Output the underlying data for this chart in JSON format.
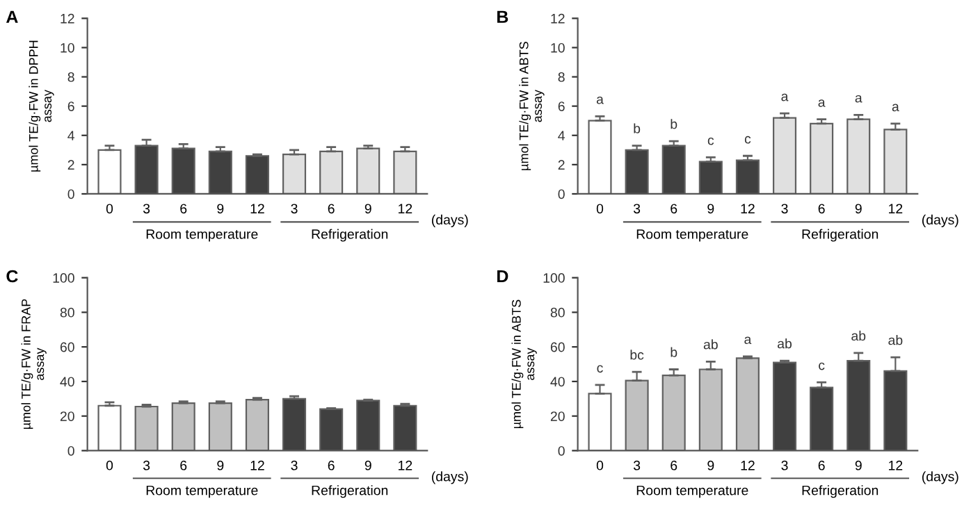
{
  "chart_data": [
    {
      "type": "bar",
      "title": "A",
      "ylabel": "µmol TE/g·FW in DPPH\nassay",
      "xlabel": "(days)",
      "categories": [
        "0",
        "3",
        "6",
        "9",
        "12",
        "3",
        "6",
        "9",
        "12"
      ],
      "values": [
        3.0,
        3.3,
        3.1,
        2.9,
        2.6,
        2.7,
        2.9,
        3.1,
        2.9
      ],
      "errors": [
        [
          3.0,
          3.3
        ],
        [
          3.3,
          3.7
        ],
        [
          3.1,
          3.4
        ],
        [
          2.9,
          3.2
        ],
        [
          2.6,
          2.7
        ],
        [
          2.7,
          3.0
        ],
        [
          2.9,
          3.2
        ],
        [
          3.1,
          3.3
        ],
        [
          2.9,
          3.2
        ]
      ],
      "colors": [
        "#ffffff",
        "#404040",
        "#404040",
        "#404040",
        "#404040",
        "#e0e0e0",
        "#e0e0e0",
        "#e0e0e0",
        "#e0e0e0"
      ],
      "ylim": [
        0,
        12
      ],
      "yticks": [
        0,
        2,
        4,
        6,
        8,
        10,
        12
      ],
      "grid": false,
      "annotations": [
        "Room temperature",
        "Refrigeration"
      ]
    },
    {
      "type": "bar",
      "title": "B",
      "ylabel": "µmol TE/g·FW in ABTS\nassay",
      "xlabel": "(days)",
      "categories": [
        "0",
        "3",
        "6",
        "9",
        "12",
        "3",
        "6",
        "9",
        "12"
      ],
      "values": [
        5.0,
        3.0,
        3.3,
        2.2,
        2.3,
        5.2,
        4.8,
        5.1,
        4.4
      ],
      "errors": [
        [
          5.0,
          5.3
        ],
        [
          3.0,
          3.3
        ],
        [
          3.3,
          3.6
        ],
        [
          2.2,
          2.5
        ],
        [
          2.3,
          2.6
        ],
        [
          5.2,
          5.5
        ],
        [
          4.8,
          5.1
        ],
        [
          5.1,
          5.4
        ],
        [
          4.4,
          4.8
        ]
      ],
      "value_labels": [
        "a",
        "b",
        "b",
        "c",
        "c",
        "a",
        "a",
        "a",
        "a"
      ],
      "colors": [
        "#ffffff",
        "#404040",
        "#404040",
        "#404040",
        "#404040",
        "#e0e0e0",
        "#e0e0e0",
        "#e0e0e0",
        "#e0e0e0"
      ],
      "ylim": [
        0,
        12
      ],
      "yticks": [
        0,
        2,
        4,
        6,
        8,
        10,
        12
      ],
      "grid": false,
      "annotations": [
        "Room temperature",
        "Refrigeration"
      ]
    },
    {
      "type": "bar",
      "title": "C",
      "ylabel": "µmol TE/g·FW in FRAP\nassay",
      "xlabel": "(days)",
      "categories": [
        "0",
        "3",
        "6",
        "9",
        "12",
        "3",
        "6",
        "9",
        "12"
      ],
      "values": [
        26,
        25.5,
        27.5,
        27.5,
        29.5,
        30,
        24,
        29,
        26
      ],
      "errors": [
        [
          26,
          28
        ],
        [
          25.5,
          26.5
        ],
        [
          27.5,
          28.5
        ],
        [
          27.5,
          28.5
        ],
        [
          29.5,
          30.5
        ],
        [
          30,
          31.5
        ],
        [
          24,
          24.5
        ],
        [
          29,
          29.5
        ],
        [
          26,
          27
        ]
      ],
      "colors": [
        "#ffffff",
        "#c0c0c0",
        "#c0c0c0",
        "#c0c0c0",
        "#c0c0c0",
        "#404040",
        "#404040",
        "#404040",
        "#404040"
      ],
      "ylim": [
        0,
        100
      ],
      "yticks": [
        0,
        20,
        40,
        60,
        80,
        100
      ],
      "grid": false,
      "annotations": [
        "Room temperature",
        "Refrigeration"
      ]
    },
    {
      "type": "bar",
      "title": "D",
      "ylabel": "µmol TE/g·FW in ABTS\nassay",
      "xlabel": "(days)",
      "categories": [
        "0",
        "3",
        "6",
        "9",
        "12",
        "3",
        "6",
        "9",
        "12"
      ],
      "values": [
        33,
        40.5,
        43.5,
        47,
        53.5,
        51,
        36.5,
        52,
        46
      ],
      "errors": [
        [
          33,
          38
        ],
        [
          40.5,
          45.5
        ],
        [
          43.5,
          47
        ],
        [
          47,
          51.5
        ],
        [
          53.5,
          54.5
        ],
        [
          51,
          52
        ],
        [
          36.5,
          39.5
        ],
        [
          52,
          56.5
        ],
        [
          46,
          54
        ]
      ],
      "value_labels": [
        "c",
        "bc",
        "b",
        "ab",
        "a",
        "ab",
        "c",
        "ab",
        "ab"
      ],
      "colors": [
        "#ffffff",
        "#c0c0c0",
        "#c0c0c0",
        "#c0c0c0",
        "#c0c0c0",
        "#404040",
        "#404040",
        "#404040",
        "#404040"
      ],
      "ylim": [
        0,
        100
      ],
      "yticks": [
        0,
        20,
        40,
        60,
        80,
        100
      ],
      "grid": false,
      "annotations": [
        "Room temperature",
        "Refrigeration"
      ]
    }
  ]
}
